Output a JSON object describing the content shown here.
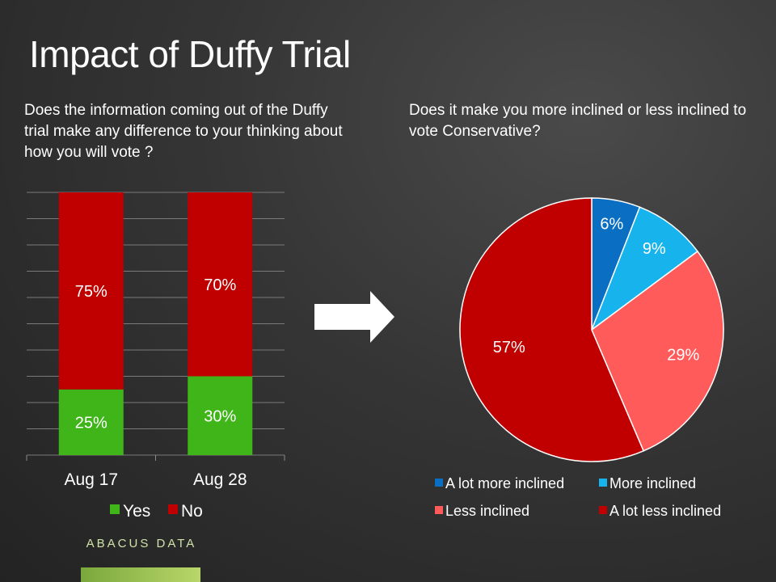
{
  "title": "Impact of Duffy Trial",
  "left_question": "Does the information coming out of the Duffy trial make any difference to your thinking about how you will vote ?",
  "right_question": "Does it make you more inclined or less inclined to vote Conservative?",
  "logo_text": "ABACUS DATA",
  "colors": {
    "yes": "#3fb51a",
    "no": "#c00000",
    "a_lot_more": "#0a6fc2",
    "more": "#17b3ec",
    "less": "#ff5b5b",
    "a_lot_less": "#c00000"
  },
  "chart_data": [
    {
      "type": "bar",
      "stacked": true,
      "categories": [
        "Aug 17",
        "Aug 28"
      ],
      "series": [
        {
          "name": "Yes",
          "values": [
            25,
            30
          ],
          "labels": [
            "25%",
            "30%"
          ]
        },
        {
          "name": "No",
          "values": [
            75,
            70
          ],
          "labels": [
            "75%",
            "70%"
          ]
        }
      ],
      "ylim": [
        0,
        100
      ],
      "grid": true,
      "legend": "bottom"
    },
    {
      "type": "pie",
      "categories": [
        "A lot more inclined",
        "More inclined",
        "Less inclined",
        "A lot less inclined"
      ],
      "values": [
        6,
        9,
        29,
        57
      ],
      "labels": [
        "6%",
        "9%",
        "29%",
        "57%"
      ],
      "legend": "bottom"
    }
  ]
}
